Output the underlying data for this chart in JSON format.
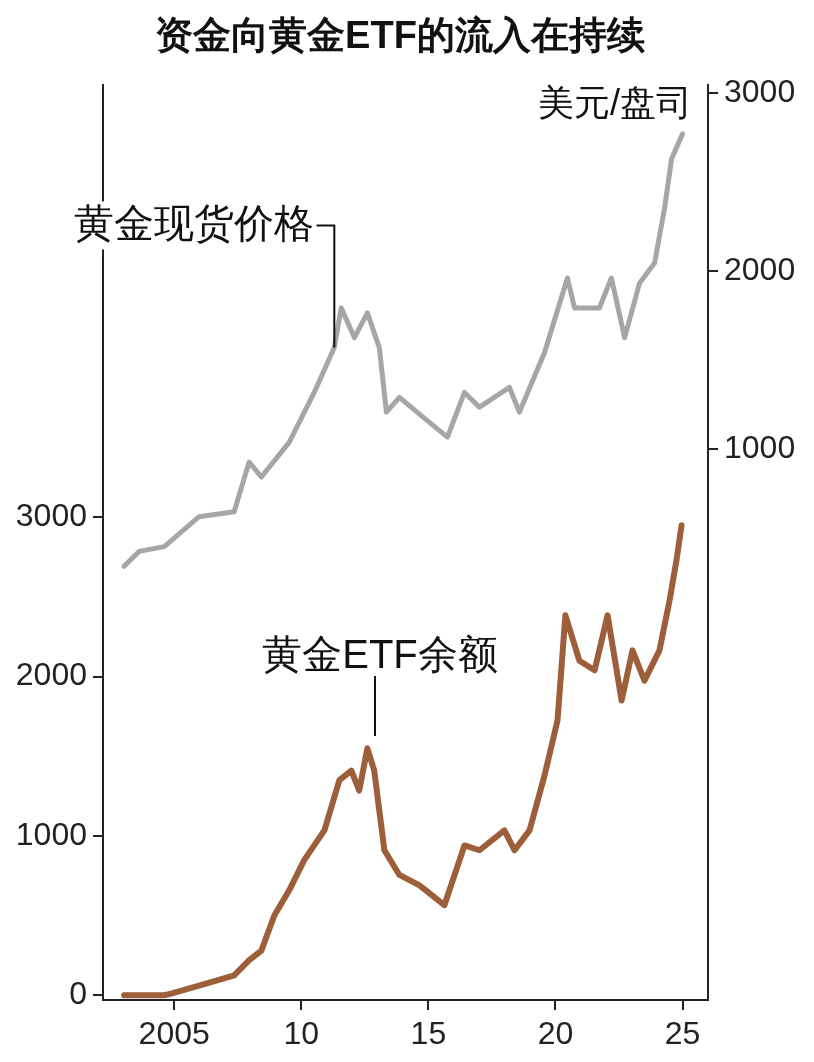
{
  "chart_data": {
    "type": "line",
    "title": "资金向黄金ETF的流入在持续",
    "ylabel": "美元/盘司",
    "xlim": [
      2002.2,
      2026
    ],
    "xticks": [
      {
        "value": 2005,
        "label": "2005"
      },
      {
        "value": 2010,
        "label": "10"
      },
      {
        "value": 2015,
        "label": "15"
      },
      {
        "value": 2020,
        "label": "20"
      },
      {
        "value": 2025,
        "label": "25"
      }
    ],
    "ylim": [
      -2095,
      3045
    ],
    "yticks": [
      1000,
      2000,
      3000
    ],
    "y2lim": [
      -30,
      5714
    ],
    "y2ticks": [
      0,
      1000,
      2000,
      3000
    ],
    "grid": false,
    "legend": false,
    "marker": "none",
    "line_style": "solid",
    "series": [
      {
        "color": "#a6a6a6",
        "axis": "y",
        "x": [
          2003.03,
          2003.62,
          2004.61,
          2005.98,
          2007.36,
          2007.95,
          2008.43,
          2009.53,
          2010.51,
          2011.3,
          2011.57,
          2012.09,
          2012.6,
          2013.07,
          2013.35,
          2013.86,
          2015.04,
          2015.75,
          2016.42,
          2017.01,
          2018.19,
          2018.58,
          2019.57,
          2020.47,
          2020.75,
          2021.73,
          2022.2,
          2022.72,
          2023.31,
          2023.9,
          2024.29,
          2024.57,
          2025.0
        ],
        "values": [
          341,
          425,
          452,
          620,
          648,
          927,
          843,
          1039,
          1318,
          1570,
          1793,
          1626,
          1765,
          1570,
          1207,
          1290,
          1150,
          1067,
          1318,
          1235,
          1346,
          1207,
          1542,
          1961,
          1793,
          1793,
          1961,
          1626,
          1933,
          2045,
          2352,
          2631,
          2771
        ]
      },
      {
        "color": "#9c5f3a",
        "axis": "y2",
        "x": [
          2003.03,
          2004.61,
          2004.88,
          2005.98,
          2007.36,
          2007.95,
          2008.43,
          2008.94,
          2009.53,
          2010.12,
          2010.91,
          2011.5,
          2011.97,
          2012.28,
          2012.6,
          2012.87,
          2013.27,
          2013.86,
          2014.65,
          2015.63,
          2016.42,
          2017.01,
          2017.99,
          2018.39,
          2018.98,
          2019.57,
          2020.08,
          2020.39,
          2020.94,
          2021.54,
          2022.05,
          2022.6,
          2023.03,
          2023.5,
          2024.09,
          2024.49,
          2024.76,
          2024.96
        ],
        "values": [
          0,
          0,
          10,
          60,
          125,
          220,
          280,
          500,
          660,
          850,
          1035,
          1350,
          1410,
          1285,
          1550,
          1410,
          910,
          755,
          690,
          565,
          940,
          910,
          1035,
          910,
          1035,
          1380,
          1725,
          2385,
          2100,
          2040,
          2385,
          1850,
          2165,
          1975,
          2165,
          2480,
          2730,
          2950
        ]
      }
    ],
    "annotations": [
      {
        "text": "黄金现货价格",
        "x": 2011.3,
        "y": 1570
      },
      "黄金ETF余额"
    ]
  }
}
